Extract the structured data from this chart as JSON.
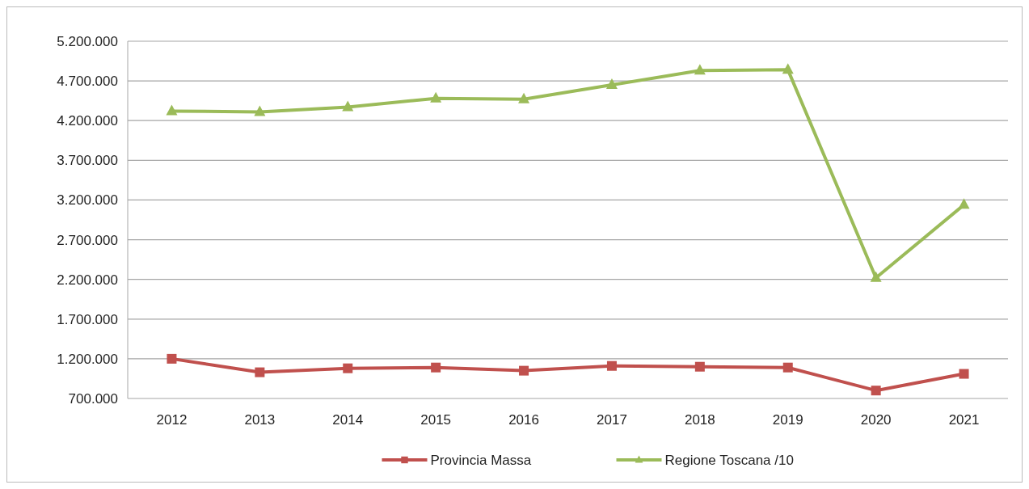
{
  "chart_data": {
    "type": "line",
    "categories": [
      "2012",
      "2013",
      "2014",
      "2015",
      "2016",
      "2017",
      "2018",
      "2019",
      "2020",
      "2021"
    ],
    "series": [
      {
        "name": "Provincia Massa",
        "color": "#c0504d",
        "marker": "square",
        "values": [
          1200000,
          1030000,
          1080000,
          1090000,
          1050000,
          1110000,
          1100000,
          1090000,
          800000,
          1010000
        ]
      },
      {
        "name": "Regione Toscana /10",
        "color": "#9bbb59",
        "marker": "triangle",
        "values": [
          4320000,
          4310000,
          4370000,
          4480000,
          4470000,
          4650000,
          4830000,
          4840000,
          2220000,
          3140000
        ]
      }
    ],
    "ylim": [
      700000,
      5200000
    ],
    "yticks": [
      {
        "value": 700000,
        "label": "700.000"
      },
      {
        "value": 1200000,
        "label": "1.200.000"
      },
      {
        "value": 1700000,
        "label": "1.700.000"
      },
      {
        "value": 2200000,
        "label": "2.200.000"
      },
      {
        "value": 2700000,
        "label": "2.700.000"
      },
      {
        "value": 3200000,
        "label": "3.200.000"
      },
      {
        "value": 3700000,
        "label": "3.700.000"
      },
      {
        "value": 4200000,
        "label": "4.200.000"
      },
      {
        "value": 4700000,
        "label": "4.700.000"
      },
      {
        "value": 5200000,
        "label": "5.200.000"
      }
    ],
    "grid": "y",
    "legend": "bottom",
    "line_style": "solid"
  }
}
